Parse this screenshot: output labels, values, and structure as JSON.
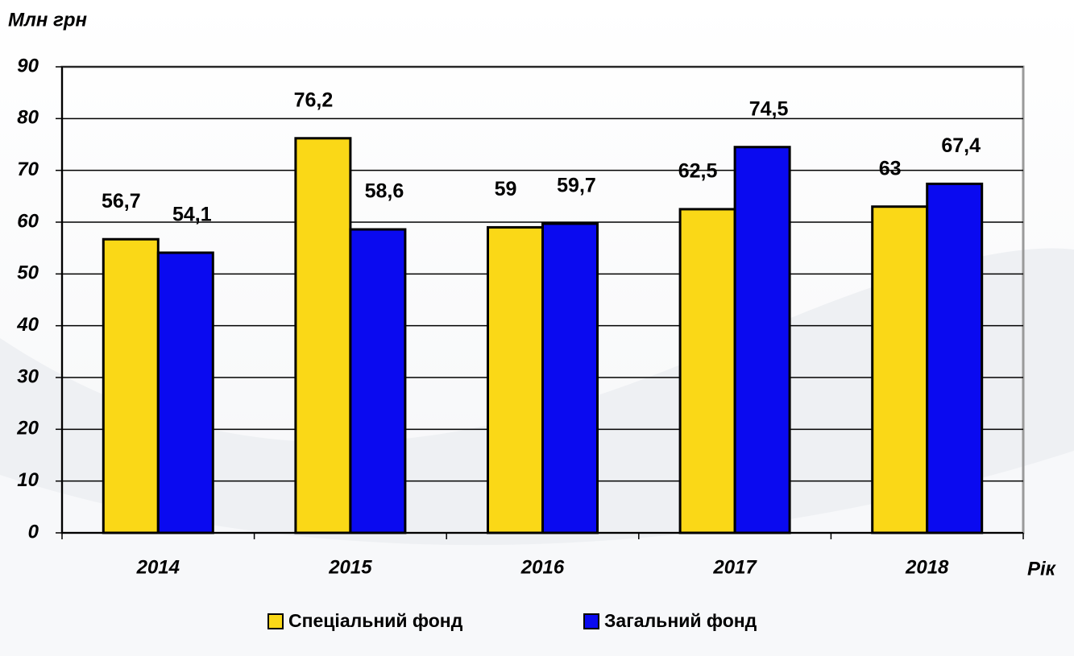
{
  "chart_data": {
    "type": "bar",
    "y_label": "Млн грн",
    "x_label": "Рік",
    "categories": [
      "2014",
      "2015",
      "2016",
      "2017",
      "2018"
    ],
    "series": [
      {
        "name": "Спеціальний фонд",
        "color": "#fad817",
        "values": [
          56.7,
          76.2,
          59,
          62.5,
          63
        ],
        "value_labels": [
          "56,7",
          "76,2",
          "59",
          "62,5",
          "63"
        ]
      },
      {
        "name": "Загальний фонд",
        "color": "#0a0af0",
        "values": [
          54.1,
          58.6,
          59.7,
          74.5,
          67.4
        ],
        "value_labels": [
          "54,1",
          "58,6",
          "59,7",
          "74,5",
          "67,4"
        ]
      }
    ],
    "ylim": [
      0,
      90
    ],
    "yticks": [
      0,
      10,
      20,
      30,
      40,
      50,
      60,
      70,
      80,
      90
    ],
    "grid": true,
    "legend": "bottom"
  }
}
